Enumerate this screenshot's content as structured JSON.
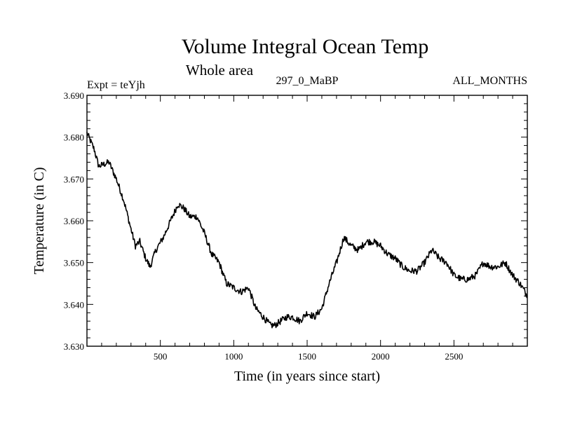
{
  "chart_data": {
    "type": "line",
    "title": "Volume Integral Ocean Temp",
    "subtitle": "Whole area",
    "info_left": "Expt = teYjh",
    "info_center": "297_0_MaBP",
    "info_right": "ALL_MONTHS",
    "xlabel": "Time (in years since start)",
    "ylabel": "Temperature (in C)",
    "xlim": [
      0,
      3000
    ],
    "ylim": [
      3.63,
      3.69
    ],
    "xticks": [
      500,
      1000,
      1500,
      2000,
      2500
    ],
    "xtick_labels": [
      "500",
      "1000",
      "1500",
      "2000",
      "2500"
    ],
    "yticks": [
      3.63,
      3.64,
      3.65,
      3.66,
      3.67,
      3.68,
      3.69
    ],
    "ytick_labels": [
      "3.630",
      "3.640",
      "3.650",
      "3.660",
      "3.670",
      "3.680",
      "3.690"
    ],
    "series": [
      {
        "name": "Volume integral ocean temperature",
        "color": "#000000",
        "x": [
          0,
          50,
          80,
          150,
          200,
          250,
          300,
          330,
          360,
          400,
          430,
          470,
          520,
          570,
          620,
          660,
          700,
          750,
          800,
          850,
          900,
          950,
          1000,
          1050,
          1100,
          1150,
          1200,
          1250,
          1280,
          1320,
          1360,
          1400,
          1450,
          1500,
          1550,
          1600,
          1650,
          1700,
          1750,
          1800,
          1850,
          1900,
          1950,
          2000,
          2050,
          2100,
          2150,
          2200,
          2250,
          2300,
          2350,
          2400,
          2450,
          2500,
          2550,
          2600,
          2650,
          2700,
          2750,
          2800,
          2850,
          2900,
          2950,
          3000
        ],
        "values": [
          3.681,
          3.677,
          3.673,
          3.674,
          3.67,
          3.665,
          3.658,
          3.654,
          3.655,
          3.651,
          3.649,
          3.653,
          3.656,
          3.66,
          3.664,
          3.663,
          3.661,
          3.661,
          3.657,
          3.652,
          3.65,
          3.645,
          3.644,
          3.643,
          3.644,
          3.639,
          3.637,
          3.635,
          3.635,
          3.636,
          3.637,
          3.637,
          3.636,
          3.638,
          3.637,
          3.639,
          3.645,
          3.65,
          3.656,
          3.654,
          3.653,
          3.655,
          3.655,
          3.654,
          3.652,
          3.651,
          3.649,
          3.648,
          3.648,
          3.65,
          3.653,
          3.651,
          3.65,
          3.647,
          3.646,
          3.646,
          3.647,
          3.65,
          3.649,
          3.649,
          3.65,
          3.647,
          3.645,
          3.642
        ]
      }
    ]
  }
}
